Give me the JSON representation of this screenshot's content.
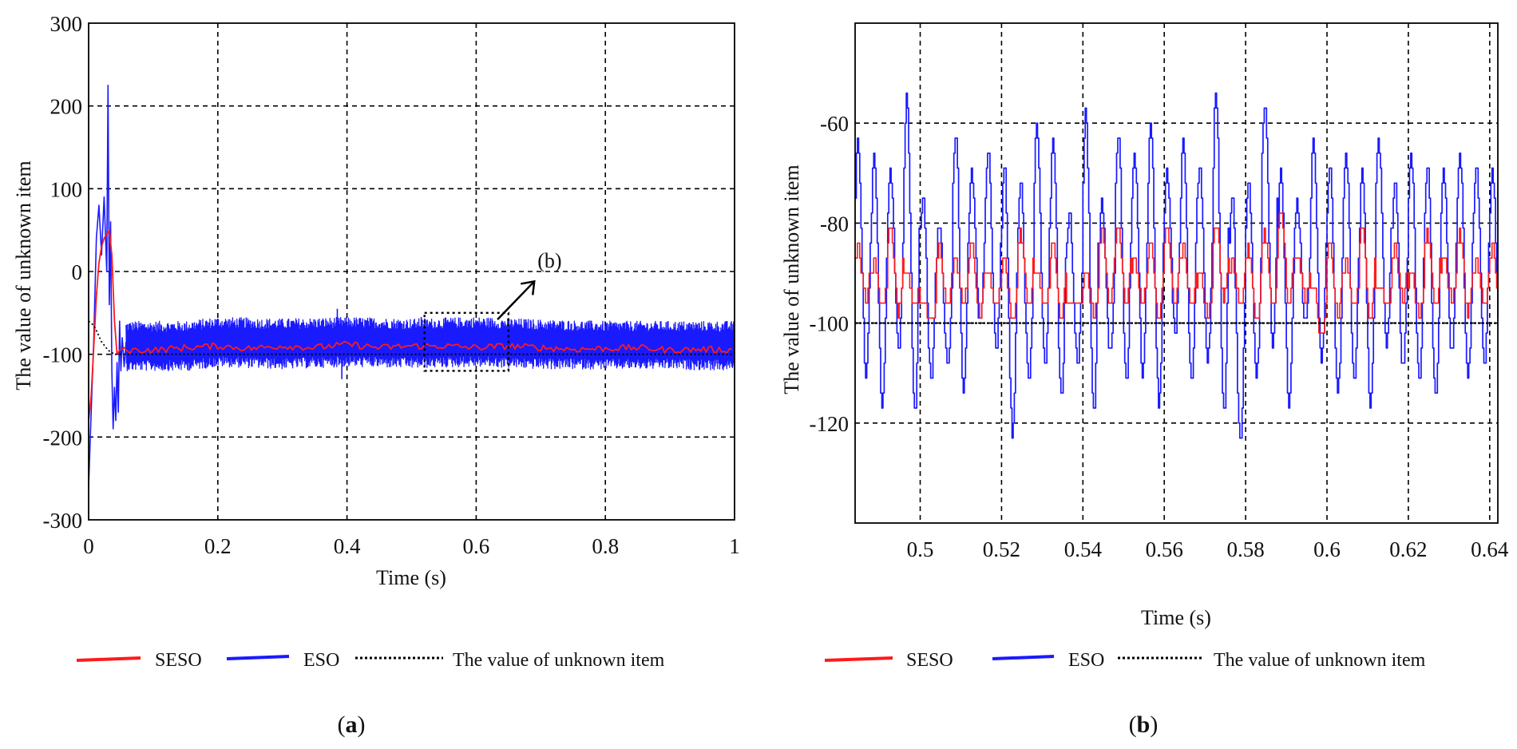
{
  "chart_data": [
    {
      "id": "a",
      "type": "line",
      "caption_prefix": "(",
      "caption_letter": "a",
      "caption_suffix": ")",
      "xlabel": "Time (s)",
      "ylabel": "The value of unknown item",
      "xlim": [
        0,
        1
      ],
      "ylim": [
        -300,
        300
      ],
      "xticks": [
        0,
        0.2,
        0.4,
        0.6,
        0.8,
        1
      ],
      "xtick_labels": [
        "0",
        "0.2",
        "0.4",
        "0.6",
        "0.8",
        "1"
      ],
      "yticks": [
        -300,
        -200,
        -100,
        0,
        100,
        200,
        300
      ],
      "ytick_labels": [
        "-300",
        "-200",
        "-100",
        "0",
        "100",
        "200",
        "300"
      ],
      "grid": true,
      "zoom_box": {
        "x": [
          0.52,
          0.65
        ],
        "y": [
          -120,
          -50
        ]
      },
      "annotation": "(b)",
      "series": [
        {
          "name": "SESO",
          "color": "#ff1a1a",
          "x": [
            0,
            0.004,
            0.008,
            0.012,
            0.016,
            0.02,
            0.024,
            0.028,
            0.032,
            0.036,
            0.04,
            0.044,
            0.048,
            0.055,
            0.06,
            0.1,
            0.15,
            0.2,
            0.25,
            0.3,
            0.35,
            0.4,
            0.45,
            0.5,
            0.55,
            0.6,
            0.65,
            0.7,
            0.75,
            0.8,
            0.85,
            0.9,
            0.95,
            1.0
          ],
          "values": [
            -180,
            -150,
            -90,
            -30,
            10,
            30,
            40,
            45,
            50,
            20,
            -60,
            -100,
            -95,
            -92,
            -95,
            -95,
            -92,
            -90,
            -93,
            -90,
            -92,
            -88,
            -92,
            -90,
            -90,
            -92,
            -90,
            -92,
            -94,
            -93,
            -92,
            -95,
            -94,
            -95
          ]
        },
        {
          "name": "ESO",
          "color": "#1a1aff",
          "envelope": {
            "x": [
              0.06,
              0.15,
              0.2,
              0.3,
              0.4,
              0.5,
              0.6,
              0.7,
              0.8,
              0.9,
              1.0
            ],
            "upper": [
              -60,
              -60,
              -55,
              -57,
              -55,
              -57,
              -55,
              -58,
              -60,
              -60,
              -60
            ],
            "lower": [
              -120,
              -120,
              -115,
              -118,
              -115,
              -117,
              -115,
              -118,
              -118,
              -118,
              -120
            ]
          },
          "transient_x": [
            0,
            0.004,
            0.008,
            0.012,
            0.016,
            0.02,
            0.024,
            0.028,
            0.03,
            0.032,
            0.034,
            0.036,
            0.038,
            0.04,
            0.042,
            0.044,
            0.046,
            0.048,
            0.05,
            0.052,
            0.055,
            0.058
          ],
          "transient_values": [
            -260,
            -170,
            -80,
            40,
            80,
            20,
            90,
            0,
            225,
            -40,
            60,
            -120,
            -190,
            -140,
            -180,
            -110,
            -170,
            -60,
            -120,
            -80,
            -115,
            -85
          ],
          "spikes_x": [
            0.385,
            0.392,
            0.515
          ],
          "spikes_values": [
            -45,
            -130,
            -55
          ]
        },
        {
          "name": "The value of unknown item",
          "color": "#000000",
          "style": "dotted",
          "x": [
            0,
            0.005,
            0.01,
            0.02,
            0.03,
            0.04,
            0.05,
            1.0
          ],
          "values": [
            -60,
            -63,
            -68,
            -85,
            -95,
            -100,
            -100,
            -100
          ]
        }
      ],
      "legend": [
        "SESO",
        "ESO",
        "The value of unknown item"
      ],
      "legend_position": "bottom"
    },
    {
      "id": "b",
      "type": "line",
      "caption_prefix": "(",
      "caption_letter": "b",
      "caption_suffix": ")",
      "xlabel": "Time (s)",
      "ylabel": "The value of unknown item",
      "xlim": [
        0.484,
        0.642
      ],
      "ylim": [
        -140,
        -40
      ],
      "xticks": [
        0.5,
        0.52,
        0.54,
        0.56,
        0.58,
        0.6,
        0.62,
        0.64
      ],
      "xtick_labels": [
        "0.5",
        "0.52",
        "0.54",
        "0.56",
        "0.58",
        "0.6",
        "0.62",
        "0.64"
      ],
      "yticks": [
        -120,
        -100,
        -80,
        -60
      ],
      "ytick_labels": [
        "-120",
        "-100",
        "-80",
        "-60"
      ],
      "grid": true,
      "series": [
        {
          "name": "SESO",
          "color": "#ff1a1a",
          "period_s": 0.004,
          "peaks": [
            -85,
            -88,
            -80,
            -90,
            -95,
            -85,
            -88,
            -84,
            -90,
            -87,
            -82,
            -90,
            -84,
            -95,
            -90,
            -82,
            -80,
            -88,
            -84,
            -80,
            -85,
            -90,
            -80,
            -88,
            -85,
            -82,
            -78,
            -86,
            -92,
            -84,
            -88,
            -80,
            -92,
            -85,
            -90,
            -82,
            -87,
            -82,
            -88,
            -85
          ],
          "troughs": [
            -95,
            -97,
            -98,
            -96,
            -100,
            -97,
            -95,
            -98,
            -96,
            -100,
            -97,
            -96,
            -100,
            -95,
            -98,
            -96,
            -97,
            -95,
            -100,
            -96,
            -97,
            -98,
            -95,
            -96,
            -100,
            -97,
            -96,
            -95,
            -103,
            -98,
            -97,
            -100,
            -96,
            -95,
            -98,
            -97,
            -95,
            -98,
            -96,
            -97
          ]
        },
        {
          "name": "ESO",
          "color": "#1a1aff",
          "period_s": 0.004,
          "peaks": [
            -64,
            -66,
            -70,
            -55,
            -74,
            -80,
            -62,
            -70,
            -66,
            -68,
            -72,
            -61,
            -64,
            -78,
            -58,
            -76,
            -62,
            -66,
            -60,
            -70,
            -64,
            -68,
            -54,
            -74,
            -72,
            -56,
            -70,
            -76,
            -64,
            -68,
            -66,
            -70,
            -64,
            -72,
            -66,
            -68,
            -70,
            -66,
            -68,
            -70
          ],
          "troughs": [
            -110,
            -116,
            -105,
            -118,
            -112,
            -108,
            -114,
            -100,
            -106,
            -122,
            -112,
            -109,
            -115,
            -108,
            -118,
            -106,
            -112,
            -110,
            -116,
            -102,
            -112,
            -107,
            -118,
            -124,
            -110,
            -104,
            -116,
            -100,
            -108,
            -114,
            -112,
            -116,
            -104,
            -109,
            -112,
            -115,
            -106,
            -111,
            -108,
            -106
          ]
        },
        {
          "name": "The value of unknown item",
          "color": "#000000",
          "style": "dotted",
          "x": [
            0.484,
            0.642
          ],
          "values": [
            -100,
            -100
          ]
        }
      ],
      "legend": [
        "SESO",
        "ESO",
        "The value of unknown item"
      ],
      "legend_position": "bottom"
    }
  ]
}
